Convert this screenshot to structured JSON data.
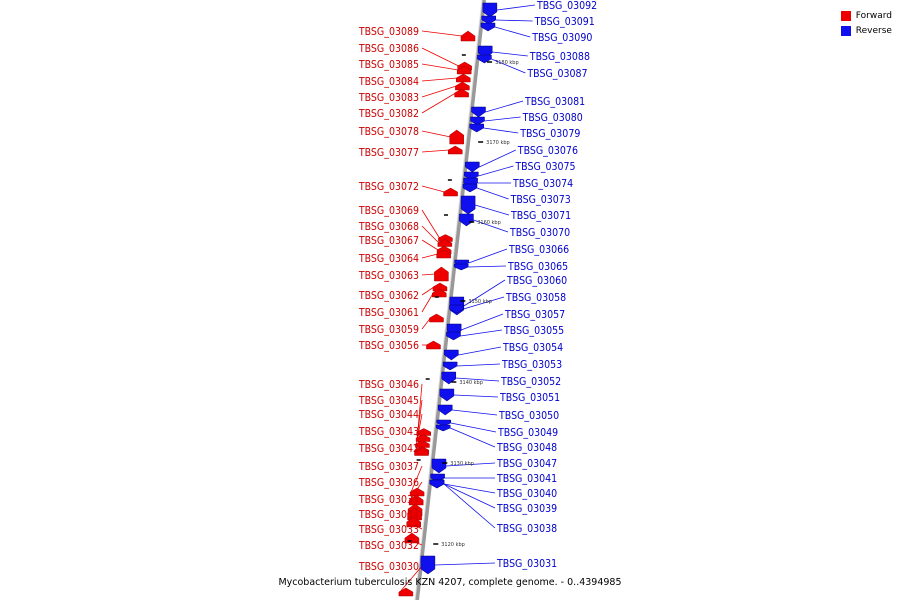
{
  "legend": {
    "items": [
      {
        "label": "Forward",
        "color": "#ee0000"
      },
      {
        "label": "Reverse",
        "color": "#1010ee"
      }
    ]
  },
  "caption": "Mycobacterium tuberculosis KZN 4207, complete genome. - 0..4394985",
  "ticks": [
    "3180 kbp",
    "3170 kbp",
    "3160 kbp",
    "3150 kbp",
    "3140 kbp",
    "3130 kbp",
    "3120 kbp"
  ],
  "forward_labels": [
    "TBSG_03089",
    "TBSG_03086",
    "TBSG_03085",
    "TBSG_03084",
    "TBSG_03083",
    "TBSG_03082",
    "TBSG_03078",
    "TBSG_03077",
    "TBSG_03072",
    "TBSG_03069",
    "TBSG_03068",
    "TBSG_03067",
    "TBSG_03064",
    "TBSG_03063",
    "TBSG_03062",
    "TBSG_03061",
    "TBSG_03059",
    "TBSG_03056",
    "TBSG_03046",
    "TBSG_03045",
    "TBSG_03044",
    "TBSG_03043",
    "TBSG_03042",
    "TBSG_03037",
    "TBSG_03036",
    "TBSG_03035",
    "TBSG_03034",
    "TBSG_03033",
    "TBSG_03032",
    "TBSG_03030"
  ],
  "reverse_labels": [
    "TBSG_03092",
    "TBSG_03091",
    "TBSG_03090",
    "TBSG_03088",
    "TBSG_03087",
    "TBSG_03081",
    "TBSG_03080",
    "TBSG_03079",
    "TBSG_03076",
    "TBSG_03075",
    "TBSG_03074",
    "TBSG_03073",
    "TBSG_03071",
    "TBSG_03070",
    "TBSG_03066",
    "TBSG_03065",
    "TBSG_03060",
    "TBSG_03058",
    "TBSG_03057",
    "TBSG_03055",
    "TBSG_03054",
    "TBSG_03053",
    "TBSG_03052",
    "TBSG_03051",
    "TBSG_03050",
    "TBSG_03049",
    "TBSG_03048",
    "TBSG_03047",
    "TBSG_03041",
    "TBSG_03040",
    "TBSG_03039",
    "TBSG_03038",
    "TBSG_03031"
  ]
}
